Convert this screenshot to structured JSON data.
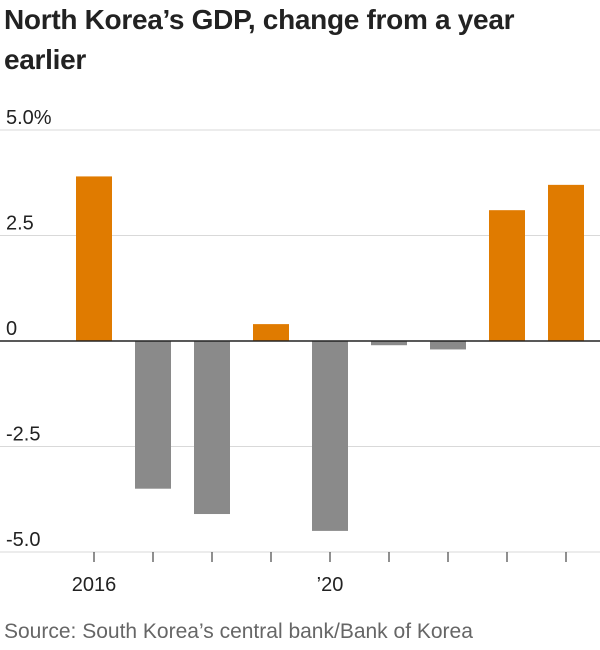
{
  "chart_data": {
    "type": "bar",
    "title": "North Korea’s GDP, change from a year earlier",
    "source": "Source: South Korea’s central bank/Bank of Korea",
    "xlabel": "",
    "ylabel": "",
    "ylim": [
      -5.0,
      5.0
    ],
    "yticks": [
      {
        "value": 5.0,
        "label": "5.0%"
      },
      {
        "value": 2.5,
        "label": "2.5"
      },
      {
        "value": 0,
        "label": "0"
      },
      {
        "value": -2.5,
        "label": "-2.5"
      },
      {
        "value": -5.0,
        "label": "-5.0"
      }
    ],
    "categories": [
      "2016",
      "2017",
      "2018",
      "2019",
      "2020",
      "2021",
      "2022",
      "2023",
      "2024"
    ],
    "xtick_labels": [
      "2016",
      "",
      "",
      "",
      "’20",
      "",
      "",
      "",
      ""
    ],
    "values": [
      3.9,
      -3.5,
      -4.1,
      0.4,
      -4.5,
      -0.1,
      -0.2,
      3.1,
      3.7
    ],
    "grid": true,
    "colors": {
      "positive": "#e07b00",
      "negative": "#8a8a8a",
      "grid": "#d9d9d9",
      "axis": "#222222"
    }
  }
}
